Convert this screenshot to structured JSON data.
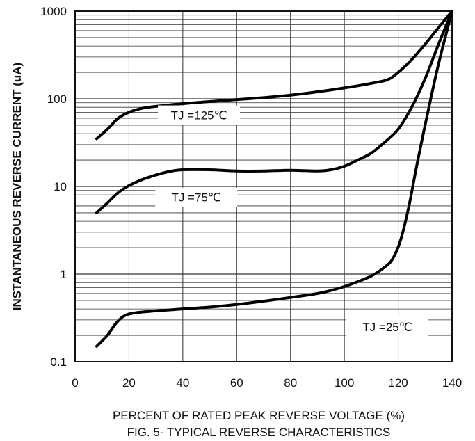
{
  "chart_data": {
    "type": "line",
    "title": "FIG. 5- TYPICAL REVERSE CHARACTERISTICS",
    "xlabel": "PERCENT OF RATED PEAK REVERSE VOLTAGE (%)",
    "ylabel": "INSTANTANEOUS REVERSE CURRENT (uA)",
    "xlim": [
      0,
      140
    ],
    "ylim": [
      0.1,
      1000
    ],
    "yscale": "log",
    "grid": true,
    "x_ticks": [
      "0",
      "20",
      "40",
      "60",
      "80",
      "100",
      "120",
      "140"
    ],
    "y_ticks": [
      "0.1",
      "1",
      "10",
      "100",
      "1000"
    ],
    "series": [
      {
        "name": "TJ =125℃",
        "points": [
          [
            8,
            35
          ],
          [
            12,
            45
          ],
          [
            16,
            60
          ],
          [
            20,
            70
          ],
          [
            25,
            78
          ],
          [
            30,
            82
          ],
          [
            40,
            88
          ],
          [
            50,
            93
          ],
          [
            60,
            98
          ],
          [
            70,
            103
          ],
          [
            80,
            110
          ],
          [
            90,
            120
          ],
          [
            100,
            133
          ],
          [
            110,
            150
          ],
          [
            116,
            165
          ],
          [
            120,
            200
          ],
          [
            125,
            280
          ],
          [
            130,
            420
          ],
          [
            135,
            650
          ],
          [
            140,
            1000
          ]
        ]
      },
      {
        "name": "TJ =75℃",
        "points": [
          [
            8,
            5
          ],
          [
            12,
            6.5
          ],
          [
            16,
            8.5
          ],
          [
            20,
            10.2
          ],
          [
            25,
            12
          ],
          [
            30,
            13.5
          ],
          [
            35,
            14.8
          ],
          [
            40,
            15.5
          ],
          [
            50,
            15.5
          ],
          [
            60,
            15
          ],
          [
            70,
            15
          ],
          [
            80,
            15.3
          ],
          [
            90,
            15
          ],
          [
            95,
            15.5
          ],
          [
            100,
            17
          ],
          [
            105,
            20
          ],
          [
            110,
            24
          ],
          [
            115,
            32
          ],
          [
            120,
            45
          ],
          [
            125,
            80
          ],
          [
            130,
            170
          ],
          [
            135,
            420
          ],
          [
            140,
            1000
          ]
        ]
      },
      {
        "name": "TJ =25℃",
        "points": [
          [
            8,
            0.15
          ],
          [
            12,
            0.2
          ],
          [
            15,
            0.27
          ],
          [
            18,
            0.33
          ],
          [
            22,
            0.36
          ],
          [
            30,
            0.38
          ],
          [
            40,
            0.4
          ],
          [
            50,
            0.42
          ],
          [
            60,
            0.45
          ],
          [
            70,
            0.49
          ],
          [
            80,
            0.54
          ],
          [
            90,
            0.6
          ],
          [
            95,
            0.65
          ],
          [
            100,
            0.72
          ],
          [
            105,
            0.82
          ],
          [
            110,
            0.95
          ],
          [
            115,
            1.2
          ],
          [
            118,
            1.5
          ],
          [
            121,
            2.5
          ],
          [
            124,
            6
          ],
          [
            127,
            18
          ],
          [
            131,
            70
          ],
          [
            135,
            250
          ],
          [
            140,
            1000
          ]
        ]
      }
    ]
  }
}
